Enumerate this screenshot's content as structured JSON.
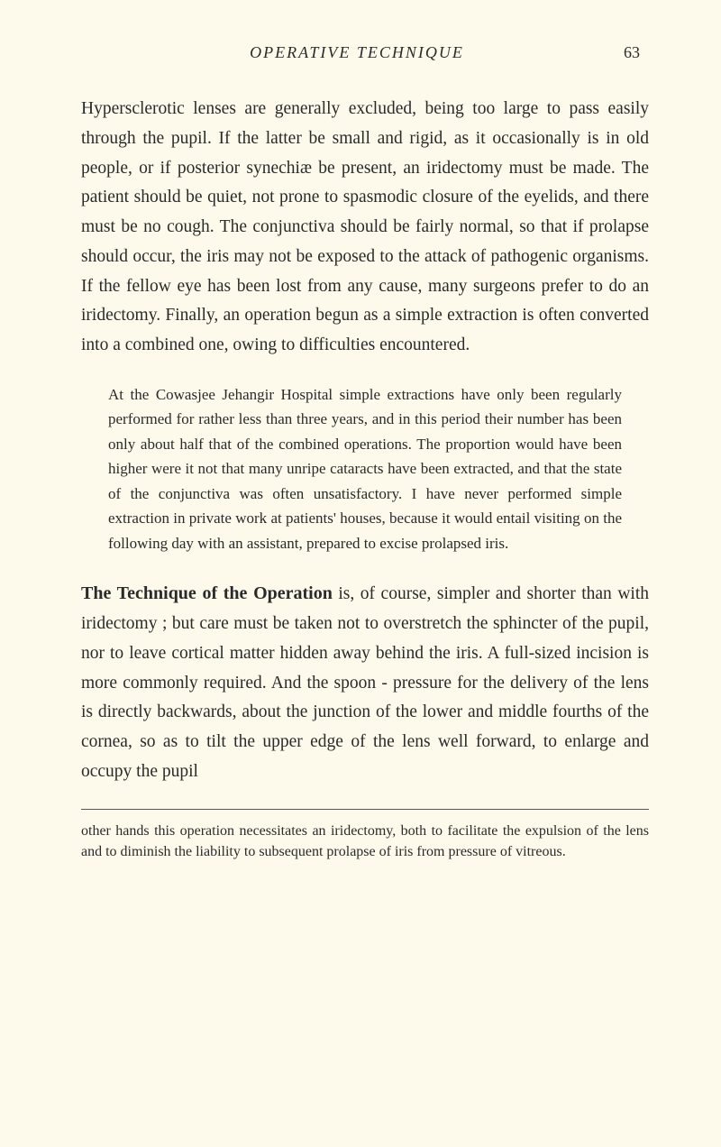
{
  "header": {
    "title": "OPERATIVE TECHNIQUE",
    "pageNumber": "63"
  },
  "paragraphs": {
    "p1": "Hypersclerotic lenses are generally excluded, being too large to pass easily through the pupil. If the latter be small and rigid, as it occasionally is in old people, or if posterior synechiæ be present, an iridectomy must be made. The patient should be quiet, not prone to spasmodic closure of the eyelids, and there must be no cough. The conjunctiva should be fairly normal, so that if prolapse should occur, the iris may not be exposed to the attack of pathogenic organisms. If the fellow eye has been lost from any cause, many surgeons prefer to do an iridectomy. Finally, an operation begun as a simple extraction is often converted into a combined one, owing to difficulties encountered.",
    "p2": "At the Cowasjee Jehangir Hospital simple extractions have only been regularly performed for rather less than three years, and in this period their number has been only about half that of the combined operations. The proportion would have been higher were it not that many unripe cataracts have been extracted, and that the state of the conjunctiva was often unsatisfactory. I have never performed simple extraction in private work at patients' houses, because it would entail visiting on the following day with an assistant, prepared to excise prolapsed iris.",
    "p3_heading": "The Technique of the Operation",
    "p3_body": " is, of course, simpler and shorter than with iridectomy ; but care must be taken not to overstretch the sphincter of the pupil, nor to leave cortical matter hidden away behind the iris. A full-sized incision is more commonly required. And the spoon - pressure for the delivery of the lens is directly backwards, about the junction of the lower and middle fourths of the cornea, so as to tilt the upper edge of the lens well forward, to enlarge and occupy the pupil",
    "footnote": "other hands this operation necessitates an iridectomy, both to facilitate the expulsion of the lens and to diminish the liability to subsequent prolapse of iris from pressure of vitreous."
  },
  "colors": {
    "background": "#fdfaec",
    "text": "#2a2a2a",
    "divider": "#555555"
  },
  "typography": {
    "headerFontSize": 18,
    "bodyFontSize": 19.5,
    "indentedFontSize": 17,
    "footnoteFontSize": 16,
    "headingFontSize": 20,
    "bodyLineHeight": 1.68,
    "indentedLineHeight": 1.62,
    "footnoteLineHeight": 1.45
  }
}
